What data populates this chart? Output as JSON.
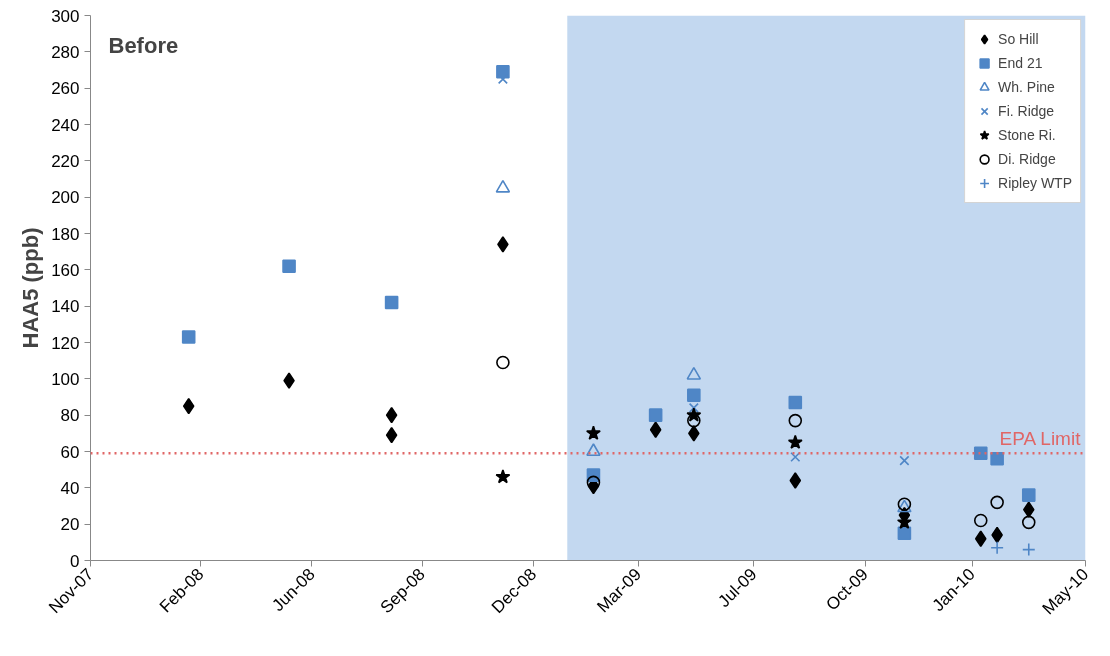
{
  "chart_data": {
    "type": "scatter",
    "ylabel": "HAA5 (ppb)",
    "annotations": [
      "Before"
    ],
    "xlim": [
      "2007-11-15",
      "2010-05-15"
    ],
    "ylim": [
      0,
      300
    ],
    "xticks": [
      {
        "value": "2007-11-15",
        "label": "Nov-07"
      },
      {
        "value": "2008-02-24",
        "label": "Feb-08"
      },
      {
        "value": "2008-06-05",
        "label": "Jun-08"
      },
      {
        "value": "2008-09-14",
        "label": "Sep-08"
      },
      {
        "value": "2008-12-25",
        "label": "Dec-08"
      },
      {
        "value": "2009-03-31",
        "label": "Mar-09"
      },
      {
        "value": "2009-07-15",
        "label": "Jul-09"
      },
      {
        "value": "2009-10-25",
        "label": "Oct-09"
      },
      {
        "value": "2010-01-31",
        "label": "Jan-10"
      },
      {
        "value": "2010-05-15",
        "label": "May-10"
      }
    ],
    "yticks": [
      0,
      20,
      40,
      60,
      80,
      100,
      120,
      140,
      160,
      180,
      200,
      220,
      240,
      260,
      280,
      300
    ],
    "grid": false,
    "legend": "top right",
    "series": [
      {
        "name": "So Hill",
        "color": "#000000",
        "marker": "diamond",
        "x": [
          "2008-02-13",
          "2008-05-15",
          "2008-08-17",
          "2008-08-17",
          "2008-11-27",
          "2009-02-18",
          "2009-04-16",
          "2009-05-21",
          "2009-08-22",
          "2009-11-30",
          "2010-02-08",
          "2010-02-23",
          "2010-03-24"
        ],
        "values": [
          85,
          99,
          80,
          69,
          174,
          41,
          72,
          70,
          44,
          25,
          12,
          14,
          28
        ]
      },
      {
        "name": "End 21",
        "color": "#4f86c6",
        "marker": "square",
        "x": [
          "2008-02-13",
          "2008-05-15",
          "2008-08-17",
          "2008-11-27",
          "2009-02-18",
          "2009-04-16",
          "2009-05-21",
          "2009-08-22",
          "2009-11-30",
          "2010-02-08",
          "2010-02-23",
          "2010-03-24"
        ],
        "values": [
          123,
          162,
          142,
          269,
          47,
          80,
          91,
          87,
          15,
          59,
          56,
          36
        ]
      },
      {
        "name": "Wh. Pine",
        "color": "#4f86c6",
        "marker": "triangle",
        "x": [
          "2008-11-27",
          "2009-02-18",
          "2009-05-21",
          "2009-11-30"
        ],
        "values": [
          205,
          60,
          102,
          29
        ]
      },
      {
        "name": "Fi. Ridge",
        "color": "#4f86c6",
        "marker": "x",
        "x": [
          "2008-11-27",
          "2009-05-21",
          "2009-08-22",
          "2009-11-30"
        ],
        "values": [
          265,
          84,
          57,
          55
        ]
      },
      {
        "name": "Stone Ri.",
        "color": "#000000",
        "marker": "star",
        "x": [
          "2008-11-27",
          "2009-02-18",
          "2009-05-21",
          "2009-08-22",
          "2009-11-30"
        ],
        "values": [
          46,
          70,
          80,
          65,
          21
        ]
      },
      {
        "name": "Di. Ridge",
        "color": "#000000",
        "marker": "circle",
        "x": [
          "2008-11-27",
          "2009-02-18",
          "2009-05-21",
          "2009-08-22",
          "2009-11-30",
          "2010-02-08",
          "2010-02-23",
          "2010-03-24"
        ],
        "values": [
          109,
          43,
          77,
          77,
          31,
          22,
          32,
          21
        ]
      },
      {
        "name": "Ripley WTP",
        "color": "#4f86c6",
        "marker": "cross",
        "x": [
          "2010-02-23",
          "2010-03-24"
        ],
        "values": [
          7,
          6
        ]
      }
    ],
    "ref_lines": [
      {
        "axis": "y",
        "value": 59,
        "label": "EPA Limit",
        "color": "#e06666",
        "line_style": "dotted"
      }
    ],
    "bands": [
      {
        "axis": "x",
        "from": "2009-01-25",
        "to": "2010-05-15",
        "color": "#a9c8ea"
      }
    ]
  }
}
